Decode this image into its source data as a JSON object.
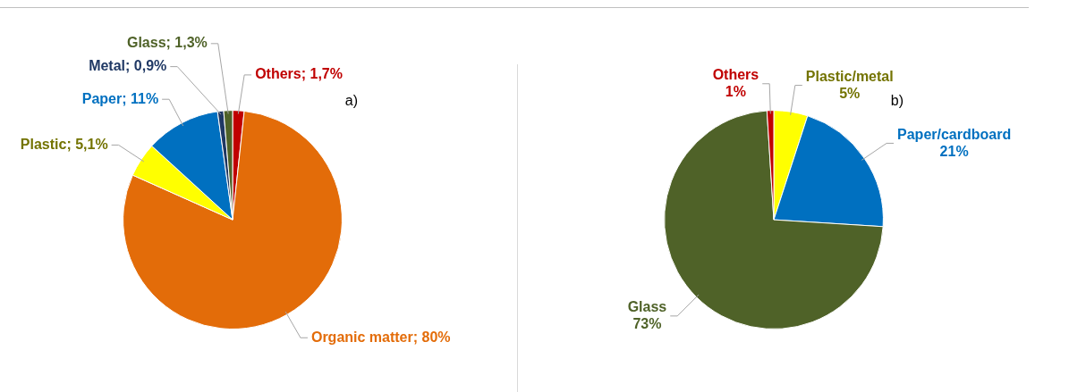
{
  "chart_data": [
    {
      "type": "pie",
      "title": "a)",
      "categories": [
        "Others",
        "Organic matter",
        "Plastic",
        "Paper",
        "Metal",
        "Glass"
      ],
      "values": [
        1.7,
        80,
        5.1,
        11,
        0.9,
        1.3
      ],
      "value_labels": [
        "1,7%",
        "80%",
        "5,1%",
        "11%",
        "0,9%",
        "1,3%"
      ],
      "colors": [
        "#c00000",
        "#e36c09",
        "#ffff00",
        "#0070c0",
        "#1f3864",
        "#4f6228"
      ]
    },
    {
      "type": "pie",
      "title": "b)",
      "categories": [
        "Plastic/metal",
        "Paper/cardboard",
        "Glass",
        "Others"
      ],
      "values": [
        5,
        21,
        73,
        1
      ],
      "value_labels": [
        "5%",
        "21%",
        "73%",
        "1%"
      ],
      "colors": [
        "#ffff00",
        "#0070c0",
        "#4f6228",
        "#c00000"
      ]
    }
  ]
}
